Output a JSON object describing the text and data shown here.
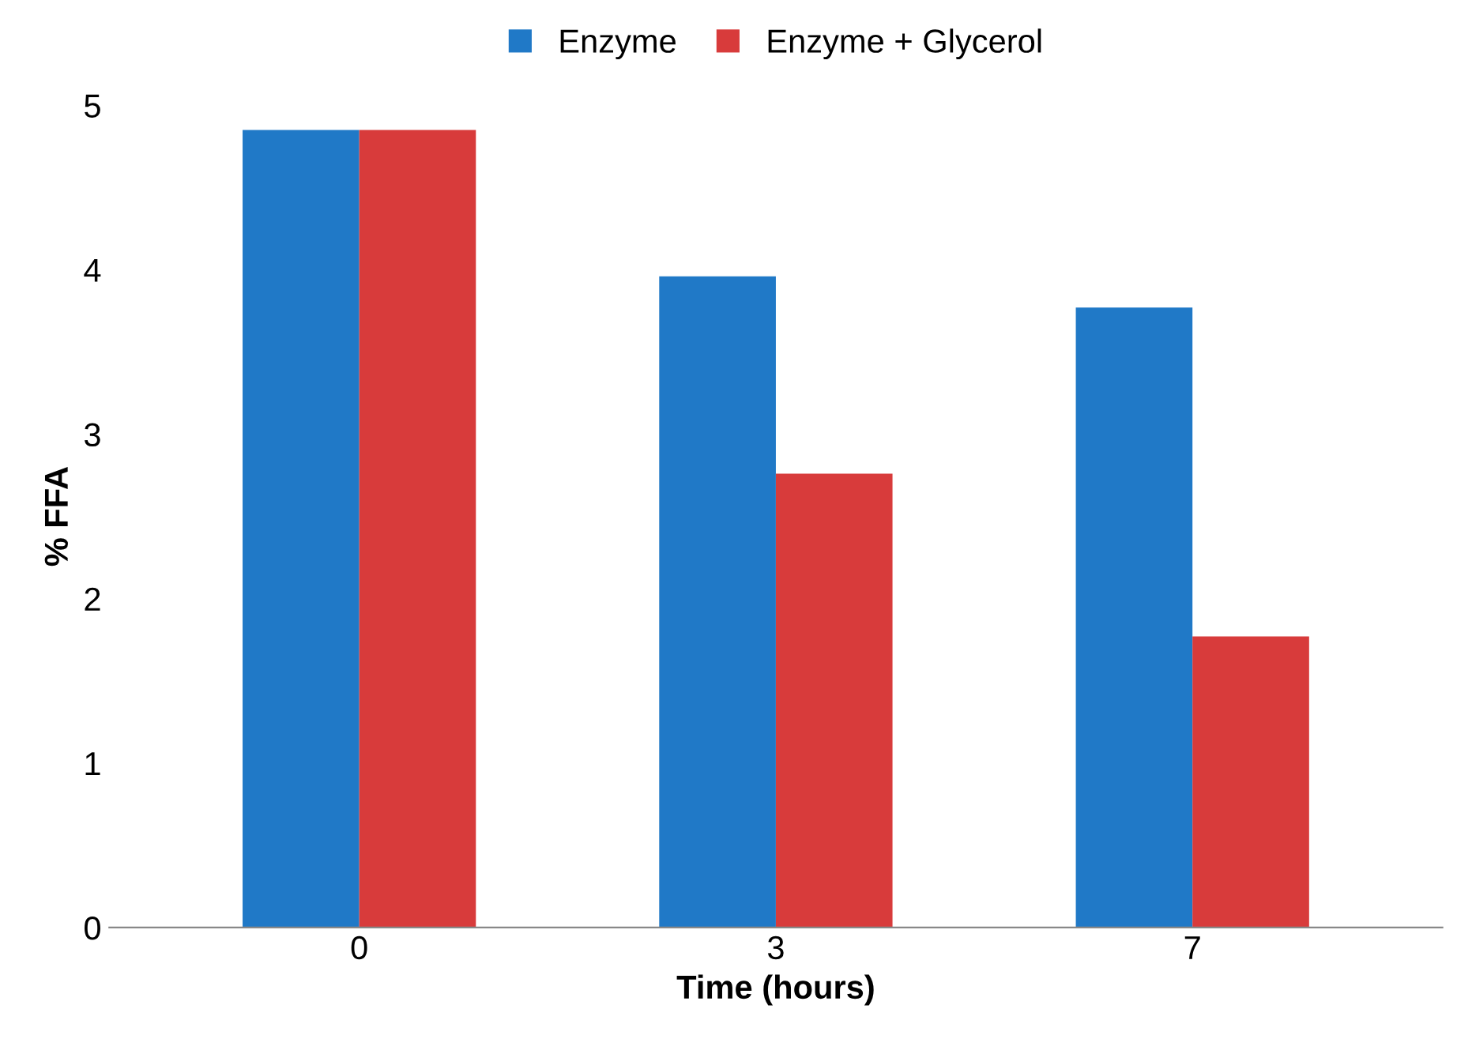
{
  "chart_data": {
    "type": "bar",
    "xlabel": "Time (hours)",
    "ylabel": "% FFA",
    "categories": [
      "0",
      "3",
      "7"
    ],
    "series": [
      {
        "name": "Enzyme",
        "color": "#2079c7",
        "values": [
          4.85,
          3.96,
          3.77
        ]
      },
      {
        "name": "Enzyme + Glycerol",
        "color": "#d83b3b",
        "values": [
          4.85,
          2.76,
          1.77
        ]
      }
    ],
    "ylim": [
      0,
      5
    ],
    "yticks": [
      0,
      1,
      2,
      3,
      4,
      5
    ],
    "grid": false,
    "legend": "top"
  }
}
